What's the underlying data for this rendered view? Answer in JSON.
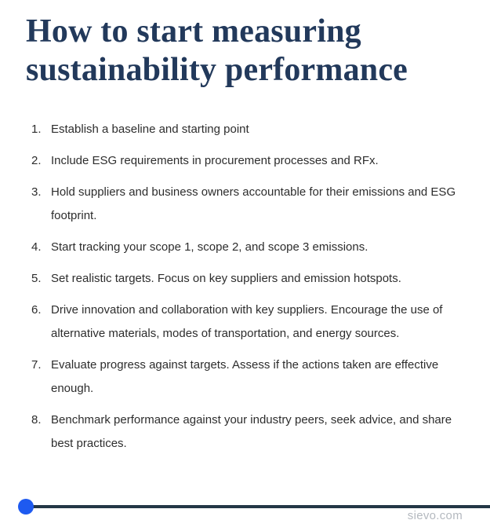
{
  "page": {
    "title_line1": "How to start measuring",
    "title_line2": "sustainability performance"
  },
  "list": {
    "items": [
      {
        "num": "1.",
        "text": "Establish a baseline and starting point"
      },
      {
        "num": "2.",
        "text": "Include ESG requirements in procurement processes and RFx."
      },
      {
        "num": "3.",
        "text": "Hold suppliers and business owners accountable for their emissions and ESG footprint."
      },
      {
        "num": "4.",
        "text": "Start tracking your scope 1, scope 2, and scope 3 emissions."
      },
      {
        "num": "5.",
        "text": "Set realistic targets. Focus on key suppliers and emission hotspots."
      },
      {
        "num": "6.",
        "text": "Drive innovation and collaboration with key suppliers. Encourage the use of alternative materials, modes of transportation, and energy sources."
      },
      {
        "num": "7.",
        "text": "Evaluate progress against targets. Assess if the actions taken are effective enough."
      },
      {
        "num": "8.",
        "text": "Benchmark performance against your industry peers, seek advice, and share best practices."
      }
    ]
  },
  "footer": {
    "website": "sievo.com",
    "accent_dot_color": "#1e5af0",
    "rule_color": "#233746"
  },
  "colors": {
    "title_text": "#22395b",
    "body_text": "#2d2d2d",
    "muted_text": "#b4b9bf"
  }
}
